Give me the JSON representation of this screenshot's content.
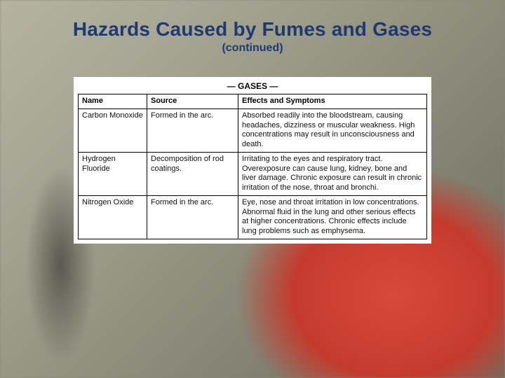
{
  "title": "Hazards Caused by Fumes and Gases",
  "subtitle": "(continued)",
  "table": {
    "caption": "— GASES —",
    "columns": [
      "Name",
      "Source",
      "Effects and Symptoms"
    ],
    "rows": [
      {
        "name": "Carbon Monoxide",
        "source": "Formed in the arc.",
        "effects": "Absorbed readily into the bloodstream, causing headaches, dizziness or muscular weakness. High concentrations may result in unconsciousness and death."
      },
      {
        "name": "Hydrogen Fluoride",
        "source": "Decomposition of rod coatings.",
        "effects": "Irritating to the eyes and respiratory tract. Overexposure can cause lung, kidney, bone and liver damage. Chronic exposure can result in chronic irritation of the nose, throat and bronchi."
      },
      {
        "name": "Nitrogen Oxide",
        "source": "Formed in the arc.",
        "effects": "Eye, nose and throat irritation in low concentrations. Abnormal fluid in the lung and other serious effects at higher concentrations. Chronic effects include lung problems such as emphysema."
      }
    ]
  },
  "colors": {
    "title_color": "#1f3a6e",
    "table_bg": "#ffffff",
    "border": "#000000"
  }
}
